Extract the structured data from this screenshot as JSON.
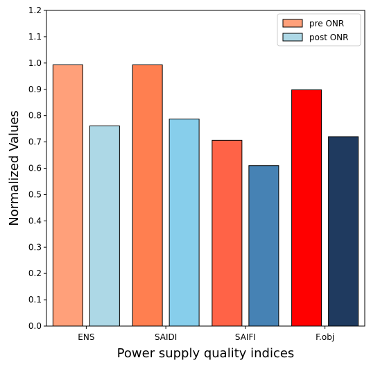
{
  "chart_data": {
    "type": "bar",
    "categories": [
      "ENS",
      "SAIDI",
      "SAIFI",
      "F.obj"
    ],
    "series": [
      {
        "name": "pre ONR",
        "values": [
          0.993,
          0.993,
          0.706,
          0.898
        ],
        "colors": [
          "#FFA07A",
          "#FF7F50",
          "#FF6347",
          "#FF0000"
        ],
        "legend_color": "#FFA07A"
      },
      {
        "name": "post ONR",
        "values": [
          0.761,
          0.787,
          0.61,
          0.72
        ],
        "colors": [
          "#ADD8E6",
          "#87CEEB",
          "#4682B4",
          "#1F3A5F"
        ],
        "legend_color": "#ADD8E6"
      }
    ],
    "xlabel": "Power supply quality indices",
    "ylabel": "Normalized Values",
    "ylim": [
      0,
      1.2
    ],
    "yticks": [
      "0.0",
      "0.1",
      "0.2",
      "0.3",
      "0.4",
      "0.5",
      "0.6",
      "0.7",
      "0.8",
      "0.9",
      "1.0",
      "1.1",
      "1.2"
    ],
    "grid": false,
    "legend_position": "top-right"
  }
}
